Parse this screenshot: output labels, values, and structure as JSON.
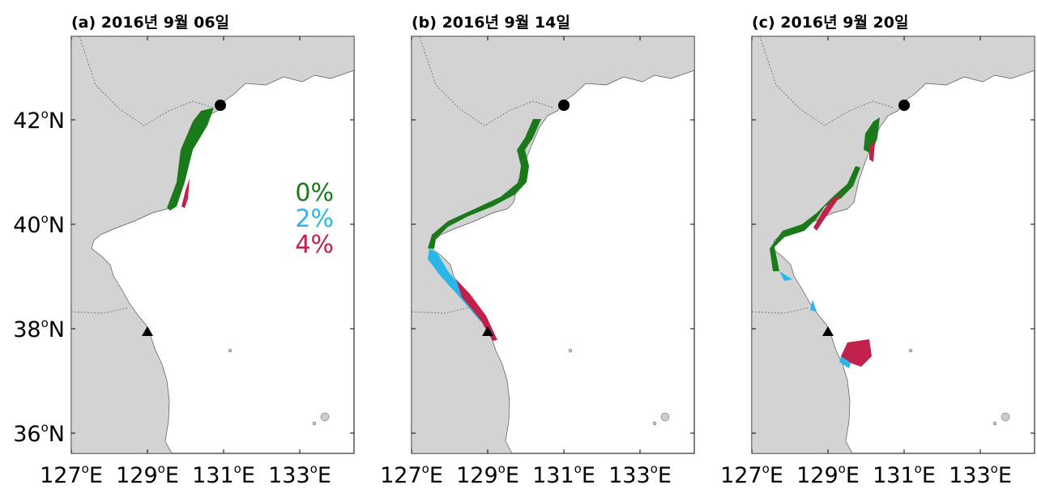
{
  "panels": [
    {
      "title": "(a) 2016년 9월 06일"
    },
    {
      "title": "(b) 2016년 9월 14일"
    },
    {
      "title": "(c) 2016년 9월 20일"
    }
  ],
  "lat_ticks": [
    {
      "number": "42",
      "degree": "o",
      "hemisphere": "N"
    },
    {
      "number": "40",
      "degree": "o",
      "hemisphere": "N"
    },
    {
      "number": "38",
      "degree": "o",
      "hemisphere": "N"
    },
    {
      "number": "36",
      "degree": "o",
      "hemisphere": "N"
    }
  ],
  "lon_ticks": [
    {
      "number": "127",
      "degree": "o",
      "hemisphere": "E"
    },
    {
      "number": "129",
      "degree": "o",
      "hemisphere": "E"
    },
    {
      "number": "131",
      "degree": "o",
      "hemisphere": "E"
    },
    {
      "number": "133",
      "degree": "o",
      "hemisphere": "E"
    }
  ],
  "legend": [
    "0%",
    "2%",
    "4%"
  ]
}
